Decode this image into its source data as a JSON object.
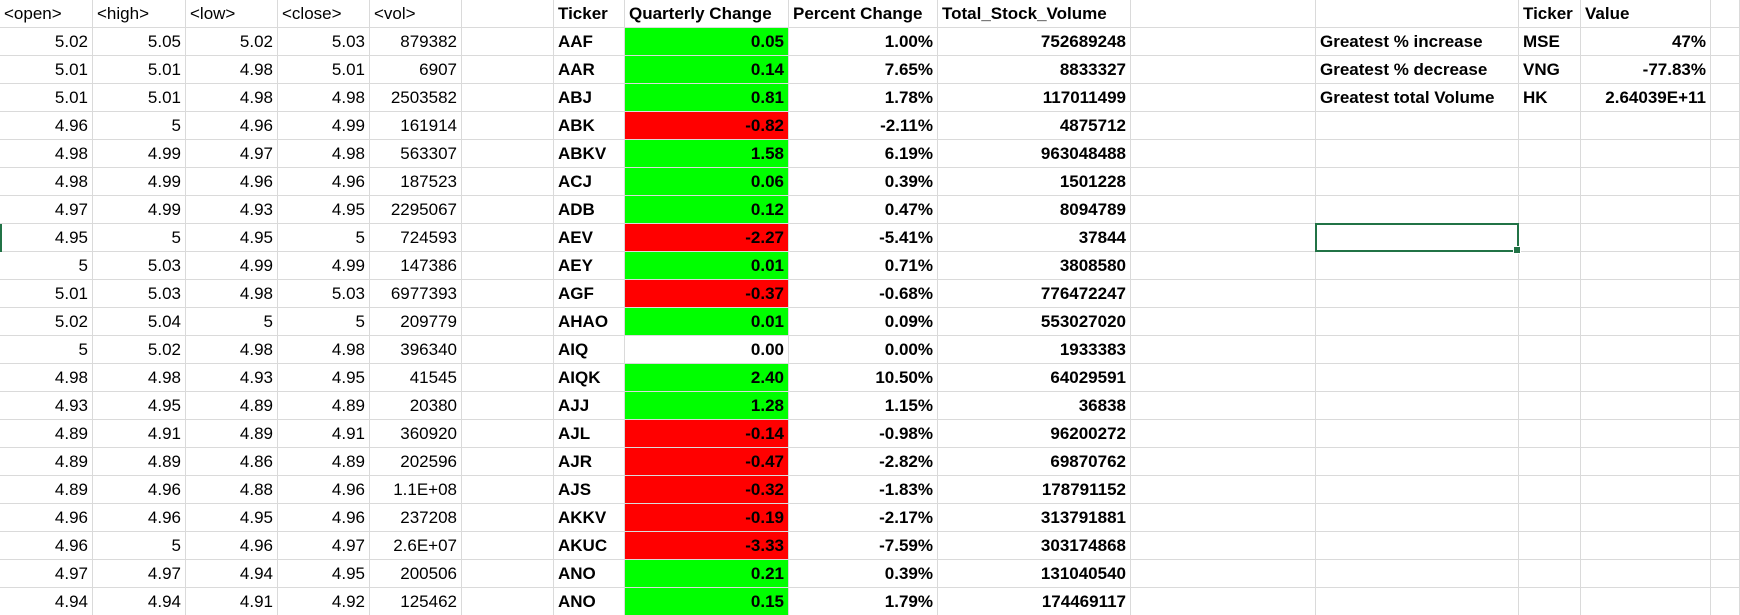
{
  "raw_table": {
    "headers": [
      "<open>",
      "<high>",
      "<low>",
      "<close>",
      "<vol>"
    ],
    "rows": [
      [
        "5.02",
        "5.05",
        "5.02",
        "5.03",
        "879382"
      ],
      [
        "5.01",
        "5.01",
        "4.98",
        "5.01",
        "6907"
      ],
      [
        "5.01",
        "5.01",
        "4.98",
        "4.98",
        "2503582"
      ],
      [
        "4.96",
        "5",
        "4.96",
        "4.99",
        "161914"
      ],
      [
        "4.98",
        "4.99",
        "4.97",
        "4.98",
        "563307"
      ],
      [
        "4.98",
        "4.99",
        "4.96",
        "4.96",
        "187523"
      ],
      [
        "4.97",
        "4.99",
        "4.93",
        "4.95",
        "2295067"
      ],
      [
        "4.95",
        "5",
        "4.95",
        "5",
        "724593"
      ],
      [
        "5",
        "5.03",
        "4.99",
        "4.99",
        "147386"
      ],
      [
        "5.01",
        "5.03",
        "4.98",
        "5.03",
        "6977393"
      ],
      [
        "5.02",
        "5.04",
        "5",
        "5",
        "209779"
      ],
      [
        "5",
        "5.02",
        "4.98",
        "4.98",
        "396340"
      ],
      [
        "4.98",
        "4.98",
        "4.93",
        "4.95",
        "41545"
      ],
      [
        "4.93",
        "4.95",
        "4.89",
        "4.89",
        "20380"
      ],
      [
        "4.89",
        "4.91",
        "4.89",
        "4.91",
        "360920"
      ],
      [
        "4.89",
        "4.89",
        "4.86",
        "4.89",
        "202596"
      ],
      [
        "4.89",
        "4.96",
        "4.88",
        "4.96",
        "1.1E+08"
      ],
      [
        "4.96",
        "4.96",
        "4.95",
        "4.96",
        "237208"
      ],
      [
        "4.96",
        "5",
        "4.96",
        "4.97",
        "2.6E+07"
      ],
      [
        "4.97",
        "4.97",
        "4.94",
        "4.95",
        "200506"
      ],
      [
        "4.94",
        "4.94",
        "4.91",
        "4.92",
        "125462"
      ]
    ]
  },
  "summary_table": {
    "headers": [
      "Ticker",
      "Quarterly Change",
      "Percent Change",
      "Total_Stock_Volume"
    ],
    "rows": [
      [
        "AAF",
        "0.05",
        "1.00%",
        "752689248"
      ],
      [
        "AAR",
        "0.14",
        "7.65%",
        "8833327"
      ],
      [
        "ABJ",
        "0.81",
        "1.78%",
        "117011499"
      ],
      [
        "ABK",
        "-0.82",
        "-2.11%",
        "4875712"
      ],
      [
        "ABKV",
        "1.58",
        "6.19%",
        "963048488"
      ],
      [
        "ACJ",
        "0.06",
        "0.39%",
        "1501228"
      ],
      [
        "ADB",
        "0.12",
        "0.47%",
        "8094789"
      ],
      [
        "AEV",
        "-2.27",
        "-5.41%",
        "37844"
      ],
      [
        "AEY",
        "0.01",
        "0.71%",
        "3808580"
      ],
      [
        "AGF",
        "-0.37",
        "-0.68%",
        "776472247"
      ],
      [
        "AHAO",
        "0.01",
        "0.09%",
        "553027020"
      ],
      [
        "AIQ",
        "0.00",
        "0.00%",
        "1933383"
      ],
      [
        "AIQK",
        "2.40",
        "10.50%",
        "64029591"
      ],
      [
        "AJJ",
        "1.28",
        "1.15%",
        "36838"
      ],
      [
        "AJL",
        "-0.14",
        "-0.98%",
        "96200272"
      ],
      [
        "AJR",
        "-0.47",
        "-2.82%",
        "69870762"
      ],
      [
        "AJS",
        "-0.32",
        "-1.83%",
        "178791152"
      ],
      [
        "AKKV",
        "-0.19",
        "-2.17%",
        "313791881"
      ],
      [
        "AKUC",
        "-3.33",
        "-7.59%",
        "303174868"
      ],
      [
        "ANO",
        "0.21",
        "0.39%",
        "131040540"
      ],
      [
        "ANO",
        "0.15",
        "1.79%",
        "174469117"
      ]
    ],
    "change_status": [
      "pos",
      "pos",
      "pos",
      "neg",
      "pos",
      "pos",
      "pos",
      "neg",
      "pos",
      "neg",
      "pos",
      "none",
      "pos",
      "pos",
      "neg",
      "neg",
      "neg",
      "neg",
      "neg",
      "pos",
      "pos"
    ]
  },
  "greatest_table": {
    "headers": [
      "",
      "Ticker",
      "Value"
    ],
    "rows": [
      [
        "Greatest % increase",
        "MSE",
        "47%"
      ],
      [
        "Greatest % decrease",
        "VNG",
        "-77.83%"
      ],
      [
        "Greatest total Volume",
        "HK",
        "2.64039E+11"
      ]
    ]
  },
  "colors": {
    "positive_fill": "#00ff00",
    "negative_fill": "#ff0000",
    "gridline": "#dadada",
    "selection": "#217346"
  }
}
